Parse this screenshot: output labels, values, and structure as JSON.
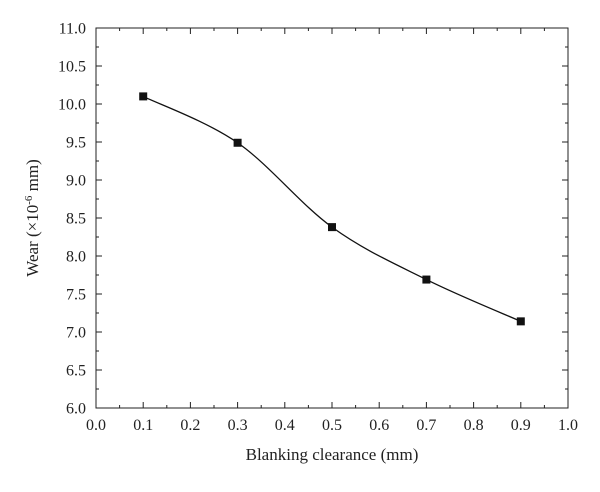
{
  "chart_data": {
    "type": "line",
    "title": "",
    "xlabel": "Blanking clearance (mm)",
    "ylabel_main": "Wear (×10",
    "ylabel_sup": "-6",
    "ylabel_tail": " mm)",
    "xlim": [
      0.0,
      1.0
    ],
    "ylim": [
      6.0,
      11.0
    ],
    "xticks": [
      "0.0",
      "0.1",
      "0.2",
      "0.3",
      "0.4",
      "0.5",
      "0.6",
      "0.7",
      "0.8",
      "0.9",
      "1.0"
    ],
    "yticks": [
      "6.0",
      "6.5",
      "7.0",
      "7.5",
      "8.0",
      "8.5",
      "9.0",
      "9.5",
      "10.0",
      "10.5",
      "11.0"
    ],
    "series": [
      {
        "x": [
          0.1,
          0.3,
          0.5,
          0.7,
          0.9
        ],
        "y": [
          10.1,
          9.49,
          8.38,
          7.69,
          7.14
        ],
        "marker": "square",
        "line": "smooth",
        "color": "#111111"
      }
    ],
    "grid": false,
    "legend": "none"
  }
}
